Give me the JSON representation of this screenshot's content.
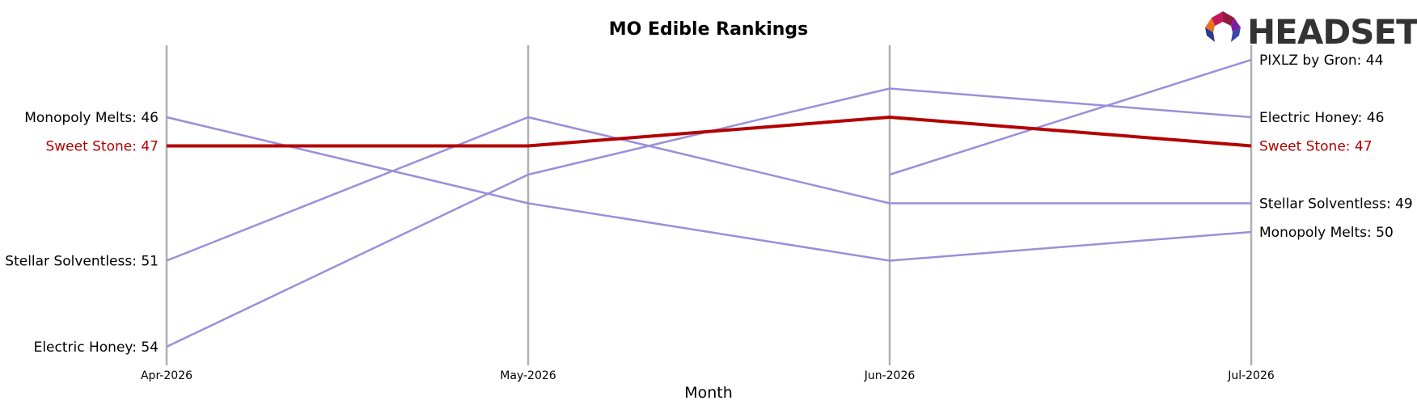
{
  "chart_data": {
    "type": "line",
    "title": "MO Edible Rankings",
    "xlabel": "Month",
    "ylabel": "",
    "categories": [
      "Apr-2026",
      "May-2026",
      "Jun-2026",
      "Jul-2026"
    ],
    "y_inverted": true,
    "ylim": [
      43,
      55
    ],
    "grid": "vertical lines at each month",
    "legend": "inline end labels",
    "highlight_color": "#b30000",
    "series_color": "#9b8fd9",
    "series": [
      {
        "name": "Monopoly Melts",
        "values": [
          46,
          49,
          51,
          50
        ],
        "highlight": false
      },
      {
        "name": "Stellar Solventless",
        "values": [
          51,
          46,
          49,
          49
        ],
        "highlight": false
      },
      {
        "name": "Electric Honey",
        "values": [
          54,
          48,
          45,
          46
        ],
        "highlight": false
      },
      {
        "name": "PIXLZ by Gron",
        "values": [
          null,
          null,
          48,
          44
        ],
        "highlight": false
      },
      {
        "name": "Sweet Stone",
        "values": [
          47,
          47,
          46,
          47
        ],
        "highlight": true
      }
    ],
    "left_labels": [
      {
        "text": "Monopoly Melts: 46",
        "series": "Monopoly Melts",
        "value": 46
      },
      {
        "text": "Sweet Stone: 47",
        "series": "Sweet Stone",
        "value": 47
      },
      {
        "text": "Stellar Solventless: 51",
        "series": "Stellar Solventless",
        "value": 51
      },
      {
        "text": "Electric Honey: 54",
        "series": "Electric Honey",
        "value": 54
      }
    ],
    "right_labels": [
      {
        "text": "PIXLZ by Gron: 44",
        "series": "PIXLZ by Gron",
        "value": 44
      },
      {
        "text": "Electric Honey: 46",
        "series": "Electric Honey",
        "value": 46
      },
      {
        "text": "Sweet Stone: 47",
        "series": "Sweet Stone",
        "value": 47
      },
      {
        "text": "Stellar Solventless: 49",
        "series": "Stellar Solventless",
        "value": 49
      },
      {
        "text": "Monopoly Melts: 50",
        "series": "Monopoly Melts",
        "value": 50
      }
    ]
  },
  "logo": {
    "text": "HEADSET",
    "icon": "headset-logo-icon"
  }
}
